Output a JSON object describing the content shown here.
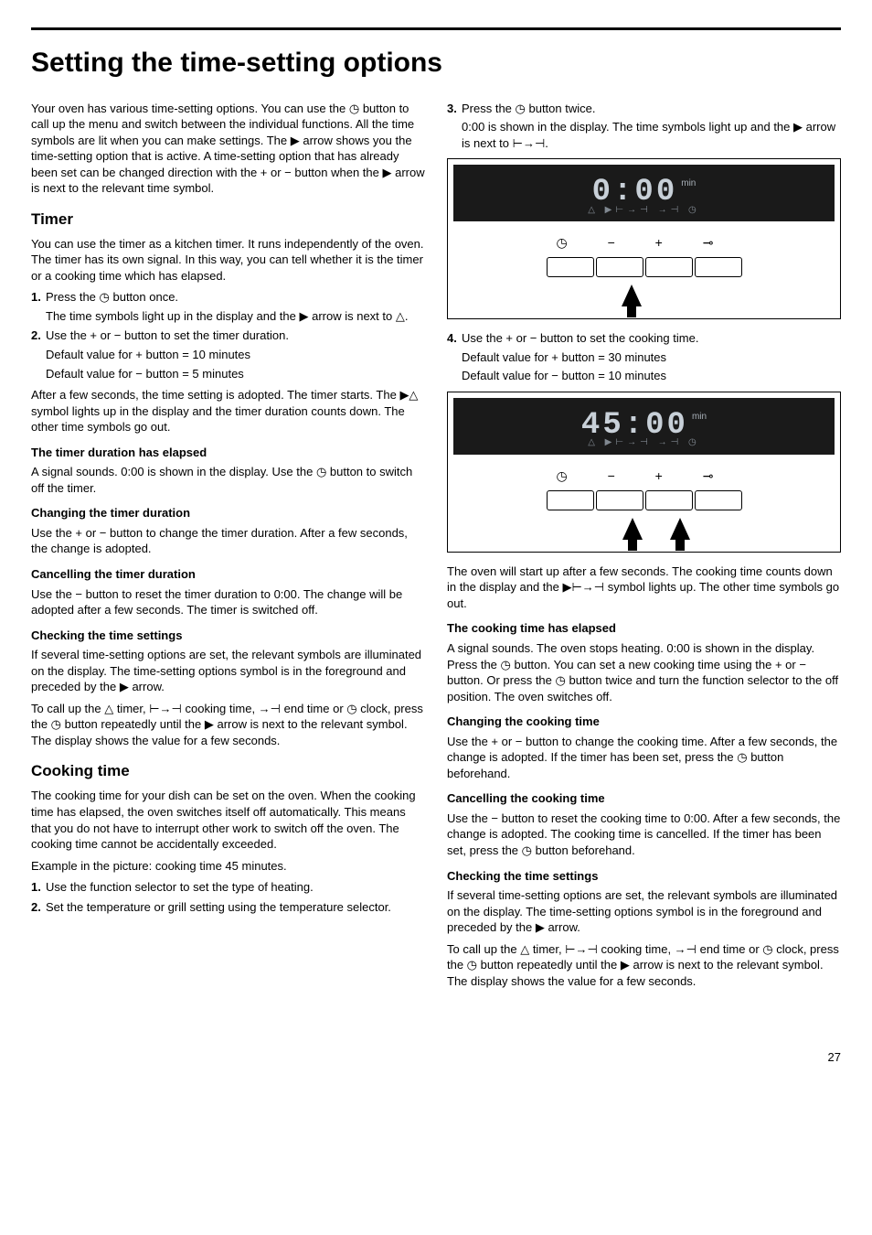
{
  "page": {
    "title": "Setting the time-setting options",
    "number": "27"
  },
  "glyphs": {
    "clock": "◷",
    "arrow_right": "▶",
    "plus": "+",
    "minus": "−",
    "bell": "△",
    "cook_time": "⊢→⊣",
    "end_time": "→⊣",
    "key": "⊸"
  },
  "left": {
    "intro": "Your oven has various time-setting options. You can use the ◷ button to call up the menu and switch between the individual functions. All the time symbols are lit when you can make settings. The ▶ arrow shows you the time-setting option that is active. A time-setting option that has already been set can be changed direction with the + or − button when the ▶ arrow is next to the relevant time symbol.",
    "timer": {
      "heading": "Timer",
      "p1": "You can use the timer as a kitchen timer. It runs independently of the oven. The timer has its own signal. In this way, you can tell whether it is the timer or a cooking time which has elapsed.",
      "step1": "Press the ◷ button once.",
      "step1b": "The time symbols light up in the display and the ▶ arrow is next to △.",
      "step2": "Use the + or − button to set the timer duration.",
      "step2b": "Default value for + button = 10 minutes",
      "step2c": "Default value for − button = 5 minutes",
      "after": "After a few seconds, the time setting is adopted. The timer starts. The ▶△ symbol lights up in the display and the timer duration counts down. The other time symbols go out.",
      "elapsed_h": "The timer duration has elapsed",
      "elapsed_p": "A signal sounds. 0:00 is shown in the display. Use the ◷ button to switch off the timer.",
      "change_h": "Changing the timer duration",
      "change_p": "Use the + or − button to change the timer duration. After a few seconds, the change is adopted.",
      "cancel_h": "Cancelling the timer duration",
      "cancel_p": "Use the − button to reset the timer duration to 0:00. The change will be adopted after a few seconds. The timer is switched off.",
      "check_h": "Checking the time settings",
      "check_p1": "If several time-setting options are set, the relevant symbols are illuminated on the display. The time-setting options symbol is in the foreground and preceded by the ▶ arrow.",
      "check_p2": "To call up the △ timer, ⊢→⊣ cooking time, →⊣ end time or ◷ clock, press the ◷ button repeatedly until the ▶ arrow is next to the relevant symbol. The display shows the value for a few seconds."
    },
    "cooking": {
      "heading": "Cooking time",
      "p1": "The cooking time for your dish can be set on the oven. When the cooking time has elapsed, the oven switches itself off automatically. This means that you do not have to interrupt other work to switch off the oven. The cooking time cannot be accidentally exceeded.",
      "p2": "Example in the picture: cooking time 45 minutes.",
      "step1": "Use the function selector to set the type of heating.",
      "step2": "Set the temperature or grill setting using the temperature selector."
    }
  },
  "right": {
    "step3": "Press the ◷ button twice.",
    "step3b": "0:00 is shown in the display. The time symbols light up and the ▶ arrow is next to ⊢→⊣.",
    "step4": "Use the + or − button to set the cooking time.",
    "step4b": "Default value for + button = 30 minutes",
    "step4c": "Default value for − button = 10 minutes",
    "after": "The oven will start up after a few seconds. The cooking time counts down in the display and the ▶⊢→⊣ symbol lights up. The other time symbols go out.",
    "elapsed_h": "The cooking time has elapsed",
    "elapsed_p": "A signal sounds. The oven stops heating. 0:00 is shown in the display. Press the ◷ button. You can set a new cooking time using the + or − button. Or press the ◷ button twice and turn the function selector to the off position. The oven switches off.",
    "change_h": "Changing the cooking time",
    "change_p": "Use the + or − button to change the cooking time. After a few seconds, the change is adopted. If the timer has been set, press the ◷ button beforehand.",
    "cancel_h": "Cancelling the cooking time",
    "cancel_p": "Use the − button to reset the cooking time to 0:00. After a few seconds, the change is adopted. The cooking time is cancelled. If the timer has been set, press the ◷ button beforehand.",
    "check_h": "Checking the time settings",
    "check_p1": "If several time-setting options are set, the relevant symbols are illuminated on the display. The time-setting options symbol is in the foreground and preceded by the ▶ arrow.",
    "check_p2": "To call up the △ timer, ⊢→⊣ cooking time, →⊣ end time or ◷ clock, press the ◷ button repeatedly until the ▶ arrow is next to the relevant symbol. The display shows the value for a few seconds."
  },
  "figures": {
    "fig1": {
      "display": "0:00",
      "min": "min",
      "symbols": "△ ▶⊢→⊣  →⊣  ◷",
      "controls": "◷   −   +   ⊸"
    },
    "fig2": {
      "display": "45:00",
      "min": "min",
      "symbols": "△ ▶⊢→⊣  →⊣  ◷",
      "controls": "◷   −   +   ⊸"
    }
  }
}
